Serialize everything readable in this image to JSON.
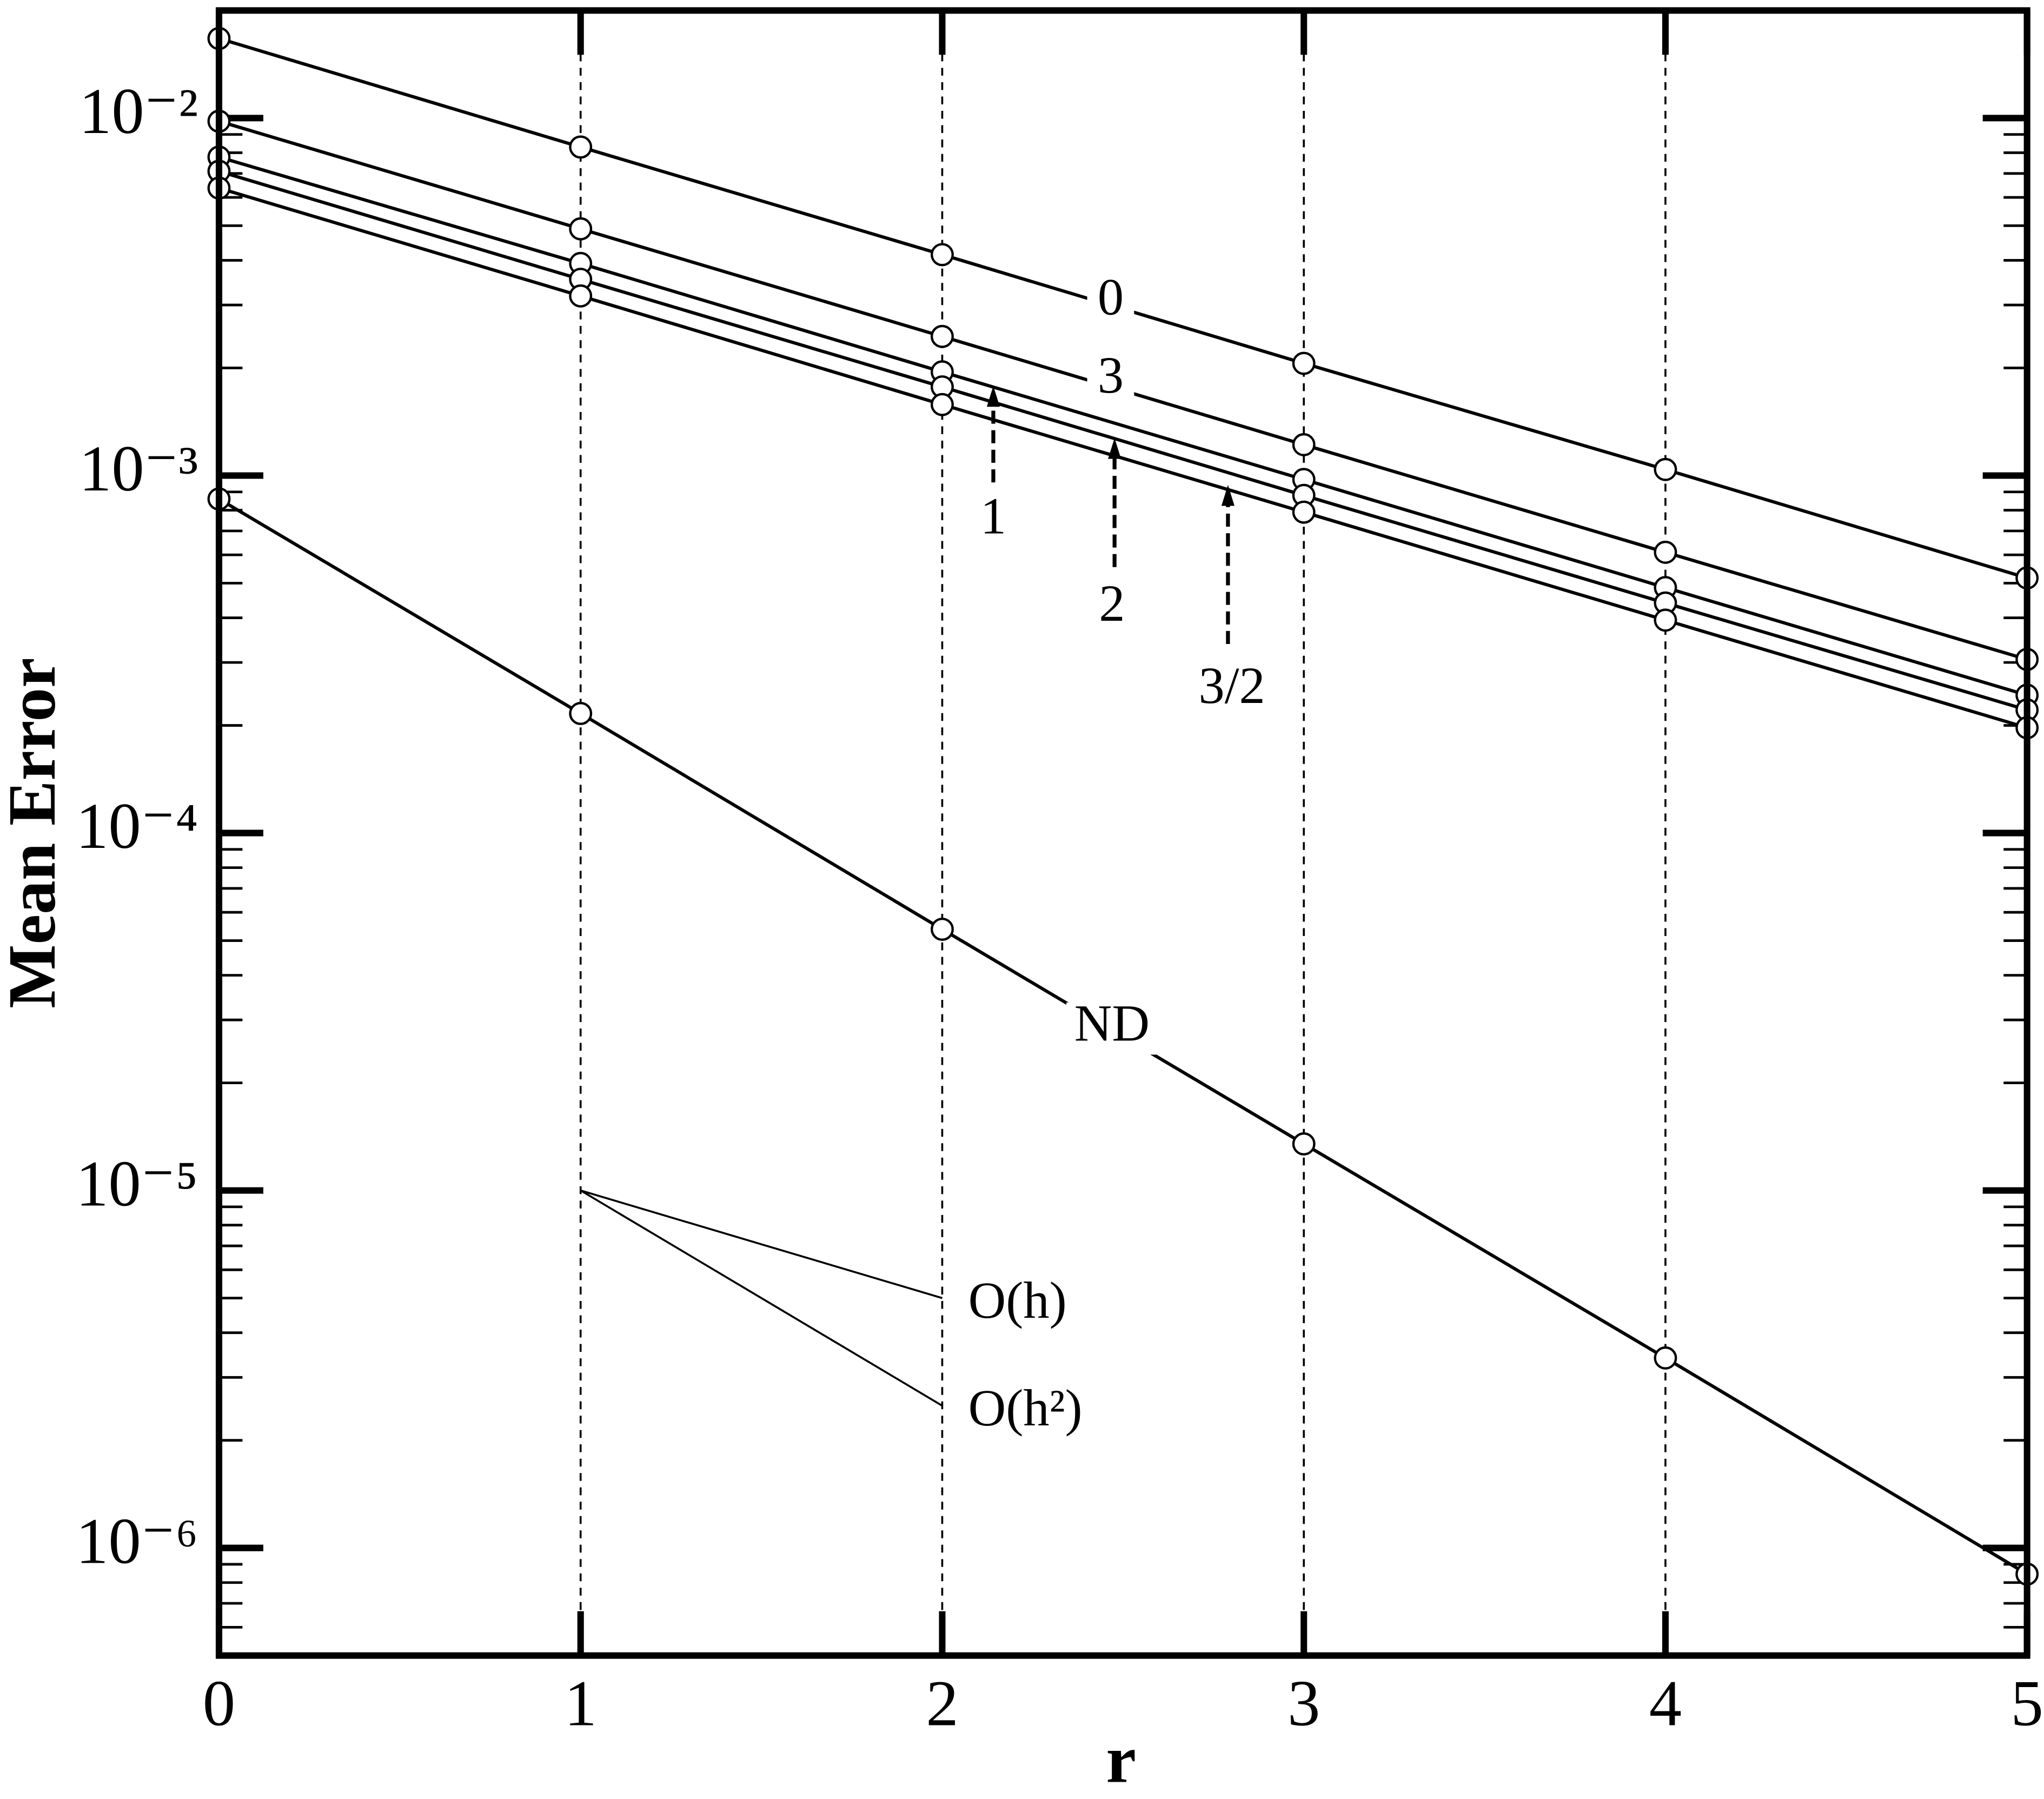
{
  "chart_data": {
    "type": "line",
    "xlabel": "r",
    "ylabel": "Mean Error",
    "log_y": true,
    "grid": "x",
    "color": "#000000",
    "x": [
      0,
      1,
      2,
      3,
      4,
      5
    ],
    "series": [
      {
        "name": "0",
        "values": [
          0.0167,
          0.0083,
          0.00415,
          0.00206,
          0.00104,
          0.000517
        ]
      },
      {
        "name": "3",
        "values": [
          0.0098,
          0.0049,
          0.00245,
          0.00122,
          0.00061,
          0.000306
        ]
      },
      {
        "name": "1",
        "values": [
          0.00778,
          0.00392,
          0.00195,
          0.000975,
          0.000486,
          0.000243
        ]
      },
      {
        "name": "2",
        "values": [
          0.0071,
          0.00354,
          0.00177,
          0.00088,
          0.00044,
          0.000221
        ]
      },
      {
        "name": "3/2",
        "values": [
          0.00637,
          0.00318,
          0.00158,
          0.00079,
          0.000394,
          0.000197
        ]
      },
      {
        "name": "ND",
        "values": [
          0.00086,
          0.000216,
          5.38e-05,
          1.35e-05,
          3.4e-06,
          8.45e-07
        ]
      }
    ],
    "annotations": [
      {
        "text": "O(h)",
        "x": [
          1,
          2
        ],
        "y": [
          1e-05,
          5e-06
        ]
      },
      {
        "text": "O(h²)",
        "x": [
          1,
          2
        ],
        "y": [
          1e-05,
          2.5e-06
        ]
      }
    ],
    "xlim": [
      0,
      5
    ],
    "xticks": [
      0,
      1,
      2,
      3,
      4,
      5
    ],
    "ylim": [
      5e-07,
      0.02
    ],
    "yticks": [
      {
        "value": 0.01,
        "label": "10⁻²"
      },
      {
        "value": 0.001,
        "label": "10⁻³"
      },
      {
        "value": 0.0001,
        "label": "10⁻⁴"
      },
      {
        "value": 1e-05,
        "label": "10⁻⁵"
      },
      {
        "value": 1e-06,
        "label": "10⁻⁶"
      }
    ],
    "yminorticks": [
      5e-07,
      6e-07,
      7e-07,
      8e-07,
      9e-07,
      2e-06,
      3e-06,
      4e-06,
      5e-06,
      6e-06,
      7e-06,
      8e-06,
      9e-06,
      2e-05,
      3e-05,
      4e-05,
      5e-05,
      6e-05,
      7e-05,
      8e-05,
      9e-05,
      0.0002,
      0.0003,
      0.0004,
      0.0005,
      0.0006,
      0.0007,
      0.0008,
      0.0009,
      0.002,
      0.003,
      0.004,
      0.005,
      0.006,
      0.007,
      0.008,
      0.009,
      0.02
    ]
  }
}
